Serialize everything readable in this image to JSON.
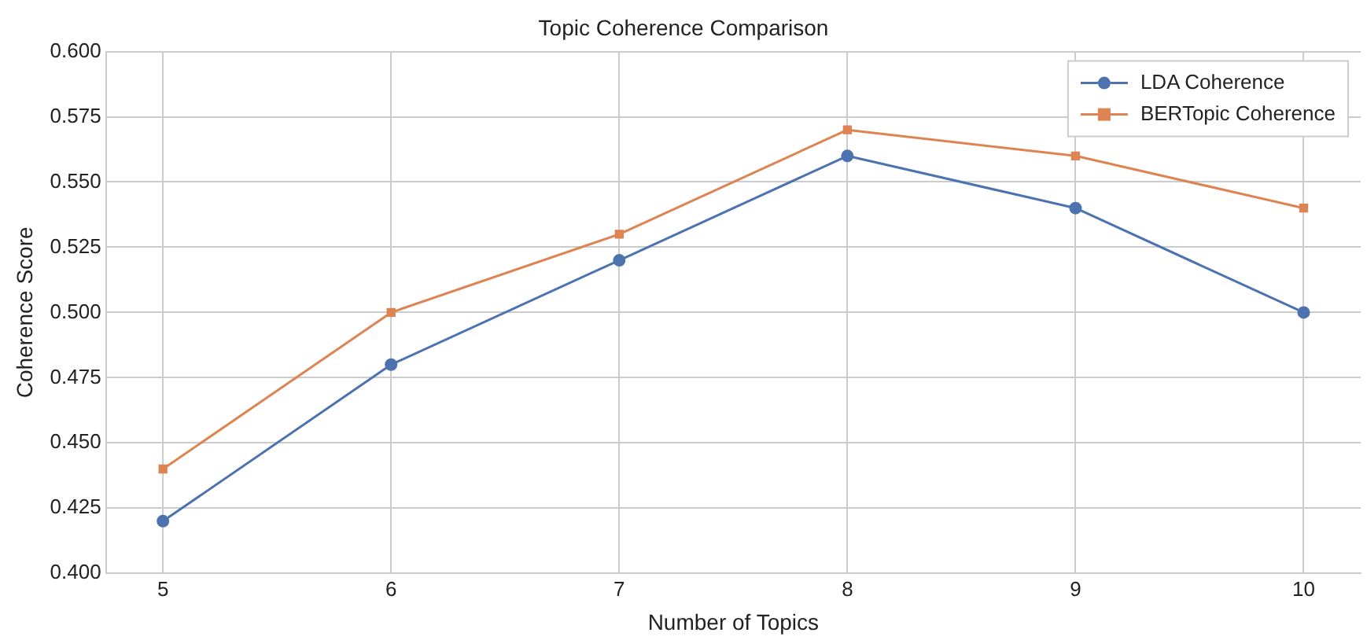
{
  "chart_data": {
    "type": "line",
    "title": "Topic Coherence Comparison",
    "xlabel": "Number of Topics",
    "ylabel": "Coherence Score",
    "x": [
      5,
      6,
      7,
      8,
      9,
      10
    ],
    "series": [
      {
        "name": "LDA Coherence",
        "color": "#4c72b0",
        "marker": "circle",
        "values": [
          0.42,
          0.48,
          0.52,
          0.56,
          0.54,
          0.5
        ]
      },
      {
        "name": "BERTopic Coherence",
        "color": "#dd8452",
        "marker": "square",
        "values": [
          0.44,
          0.5,
          0.53,
          0.57,
          0.56,
          0.54
        ]
      }
    ],
    "xlim": [
      4.75,
      10.25
    ],
    "xticks": [
      5,
      6,
      7,
      8,
      9,
      10
    ],
    "ylim": [
      0.4,
      0.6
    ],
    "yticks": [
      {
        "value": 0.4,
        "label": "0.400"
      },
      {
        "value": 0.425,
        "label": "0.425"
      },
      {
        "value": 0.45,
        "label": "0.450"
      },
      {
        "value": 0.475,
        "label": "0.475"
      },
      {
        "value": 0.5,
        "label": "0.500"
      },
      {
        "value": 0.525,
        "label": "0.525"
      },
      {
        "value": 0.55,
        "label": "0.550"
      },
      {
        "value": 0.575,
        "label": "0.575"
      },
      {
        "value": 0.6,
        "label": "0.600"
      }
    ],
    "grid": true,
    "legend": "top right",
    "line_style": "solid"
  }
}
